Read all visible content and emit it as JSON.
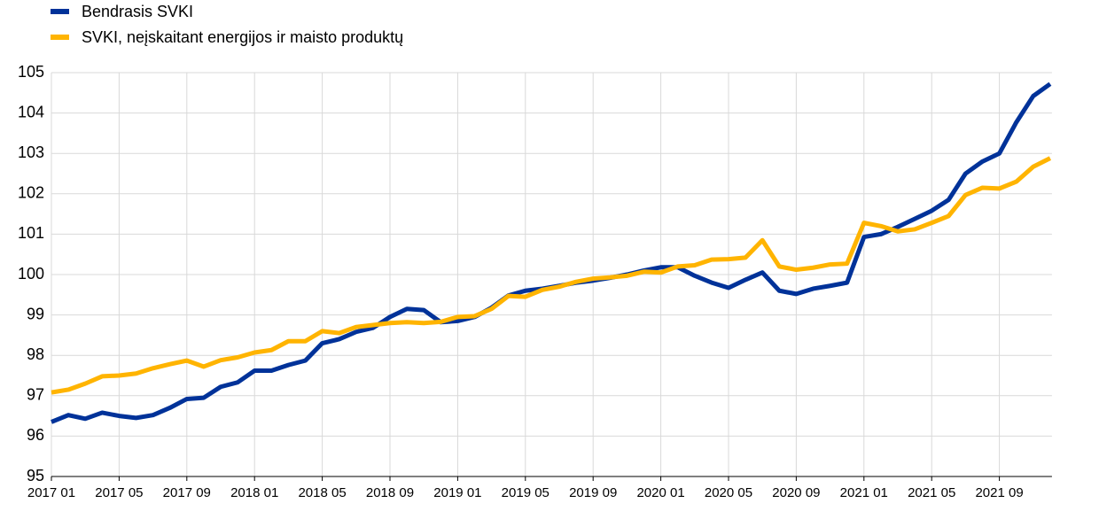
{
  "chart_data": {
    "type": "line",
    "categories": [
      "2017 01",
      null,
      null,
      null,
      "2017 05",
      null,
      null,
      null,
      "2017 09",
      null,
      null,
      null,
      "2018 01",
      null,
      null,
      null,
      "2018 05",
      null,
      null,
      null,
      "2018 09",
      null,
      null,
      null,
      "2019 01",
      null,
      null,
      null,
      "2019 05",
      null,
      null,
      null,
      "2019 09",
      null,
      null,
      null,
      "2020 01",
      null,
      null,
      null,
      "2020 05",
      null,
      null,
      null,
      "2020 09",
      null,
      null,
      null,
      "2021 01",
      null,
      null,
      null,
      "2021 05",
      null,
      null,
      null,
      "2021 09",
      null,
      null,
      null
    ],
    "series": [
      {
        "name": "Bendrasis SVKI",
        "color": "#003299",
        "values": [
          96.35,
          96.52,
          96.43,
          96.58,
          96.5,
          96.45,
          96.52,
          96.7,
          96.92,
          96.95,
          97.22,
          97.33,
          97.62,
          97.62,
          97.76,
          97.87,
          98.3,
          98.4,
          98.58,
          98.68,
          98.95,
          99.15,
          99.12,
          98.82,
          98.85,
          98.95,
          99.18,
          99.48,
          99.6,
          99.65,
          99.72,
          99.8,
          99.85,
          99.92,
          100.0,
          100.1,
          100.18,
          100.18,
          99.97,
          99.8,
          99.67,
          99.87,
          100.05,
          99.6,
          99.52,
          99.65,
          99.72,
          99.8,
          100.93,
          101.0,
          101.18,
          101.38,
          101.58,
          101.85,
          102.5,
          102.8,
          103.0,
          103.77,
          104.42,
          104.72
        ]
      },
      {
        "name": "SVKI, neįskaitant energijos ir maisto produktų",
        "color": "#ffb400",
        "values": [
          97.08,
          97.15,
          97.3,
          97.48,
          97.5,
          97.55,
          97.68,
          97.78,
          97.87,
          97.72,
          97.88,
          97.95,
          98.07,
          98.13,
          98.35,
          98.35,
          98.6,
          98.55,
          98.7,
          98.75,
          98.8,
          98.82,
          98.8,
          98.83,
          98.95,
          98.97,
          99.15,
          99.47,
          99.45,
          99.62,
          99.7,
          99.82,
          99.9,
          99.93,
          99.97,
          100.07,
          100.05,
          100.2,
          100.23,
          100.37,
          100.38,
          100.42,
          100.85,
          100.2,
          100.12,
          100.17,
          100.25,
          100.27,
          101.28,
          101.2,
          101.07,
          101.12,
          101.28,
          101.45,
          101.97,
          102.15,
          102.13,
          102.3,
          102.67,
          102.88
        ]
      }
    ],
    "ylim": [
      95,
      105
    ],
    "yticks": [
      95,
      96,
      97,
      98,
      99,
      100,
      101,
      102,
      103,
      104,
      105
    ],
    "grid": true
  }
}
